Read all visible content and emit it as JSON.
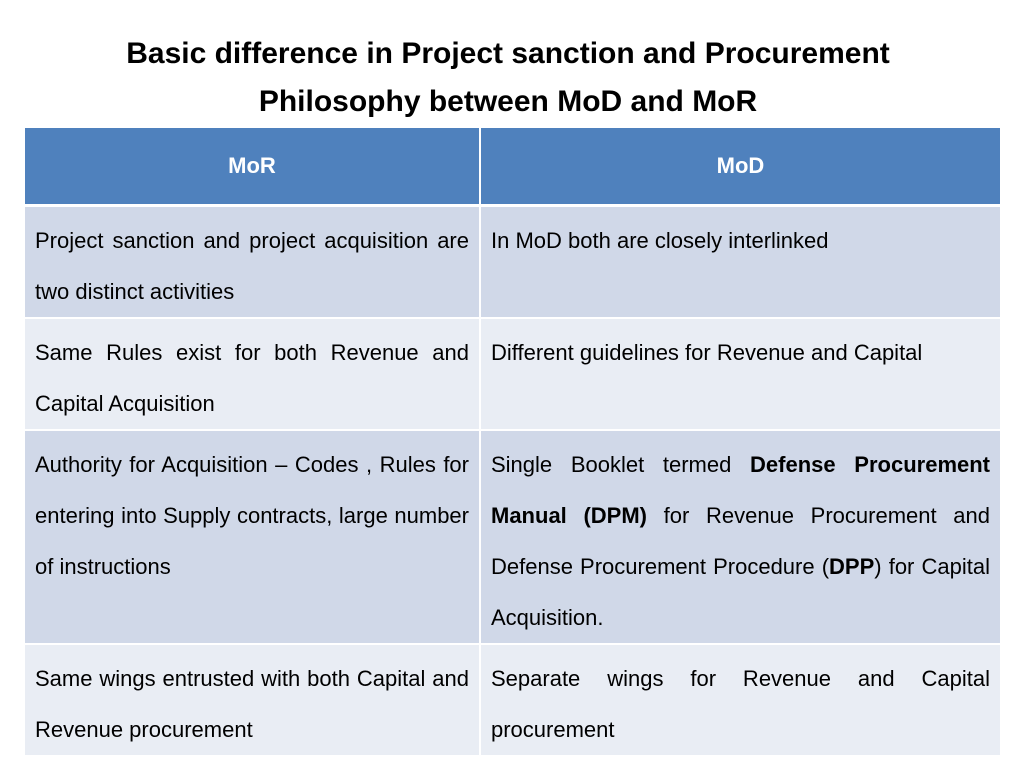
{
  "title": {
    "line1": "Basic difference in Project sanction and Procurement",
    "line2": "Philosophy between MoD and MoR"
  },
  "table": {
    "headers": [
      "MoR",
      "MoD"
    ],
    "rows": [
      {
        "mor": "Project sanction and project acquisition are  two distinct activities",
        "mod": "In MoD both are closely interlinked"
      },
      {
        "mor": "Same Rules exist for both Revenue and Capital Acquisition",
        "mod": "Different guidelines for Revenue and Capital"
      },
      {
        "mor": "Authority for Acquisition – Codes , Rules for entering  into Supply contracts, large number of instructions",
        "mod": {
          "part1": "Single Booklet termed ",
          "bold1": "Defense Procurement Manual  (DPM)",
          "part2": " for Revenue Procurement and Defense Procurement Procedure  (",
          "bold2": "DPP",
          "part3": ") for Capital Acquisition."
        }
      },
      {
        "mor": "Same wings entrusted with both Capital and Revenue procurement",
        "mod": "Separate wings for Revenue and Capital procurement"
      }
    ]
  },
  "colors": {
    "header_bg": "#4f81bd",
    "row_odd_bg": "#d0d8e8",
    "row_even_bg": "#e9edf4"
  }
}
